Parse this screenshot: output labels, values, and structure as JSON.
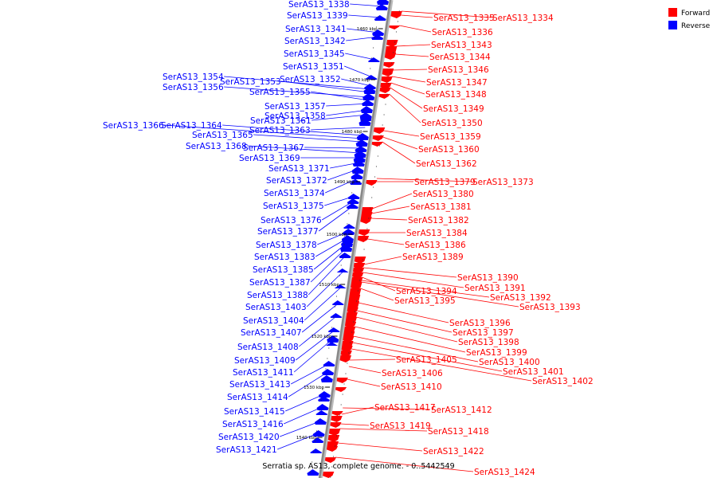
{
  "title": "Serratia sp. AS13, complete genome. - 0..5442549",
  "legend": [
    {
      "label": "Forward",
      "color": "#ff0000"
    },
    {
      "label": "Reverse",
      "color": "#0000ff"
    }
  ],
  "colors": {
    "forward": "#ff0000",
    "reverse": "#0000ff",
    "backbone": "#888888"
  },
  "ticks": [
    "1460 kbp",
    "1470 kbp",
    "1480 kbp",
    "1490 kbp",
    "1500 kbp",
    "1510 kbp",
    "1520 kbp",
    "1530 kbp",
    "1540 kbp"
  ],
  "reverse_labels": [
    "SerAS13_1338",
    "SerAS13_1339",
    "SerAS13_1341",
    "SerAS13_1342",
    "SerAS13_1345",
    "SerAS13_1351",
    "SerAS13_1354",
    "SerAS13_1353",
    "SerAS13_1352",
    "SerAS13_1356",
    "SerAS13_1355",
    "SerAS13_1357",
    "SerAS13_1358",
    "SerAS13_1361",
    "SerAS13_1366",
    "SerAS13_1364",
    "SerAS13_1363",
    "SerAS13_1365",
    "SerAS13_1368",
    "SerAS13_1367",
    "SerAS13_1369",
    "SerAS13_1371",
    "SerAS13_1372",
    "SerAS13_1374",
    "SerAS13_1375",
    "SerAS13_1376",
    "SerAS13_1377",
    "SerAS13_1378",
    "SerAS13_1383",
    "SerAS13_1385",
    "SerAS13_1387",
    "SerAS13_1388",
    "SerAS13_1403",
    "SerAS13_1404",
    "SerAS13_1407",
    "SerAS13_1408",
    "SerAS13_1409",
    "SerAS13_1411",
    "SerAS13_1413",
    "SerAS13_1414",
    "SerAS13_1415",
    "SerAS13_1416",
    "SerAS13_1420",
    "SerAS13_1421"
  ],
  "forward_labels": [
    "SerAS13_1335",
    "SerAS13_1334",
    "SerAS13_1336",
    "SerAS13_1343",
    "SerAS13_1344",
    "SerAS13_1346",
    "SerAS13_1347",
    "SerAS13_1348",
    "SerAS13_1349",
    "SerAS13_1350",
    "SerAS13_1359",
    "SerAS13_1360",
    "SerAS13_1362",
    "SerAS13_1379",
    "SerAS13_1373",
    "SerAS13_1380",
    "SerAS13_1381",
    "SerAS13_1382",
    "SerAS13_1384",
    "SerAS13_1386",
    "SerAS13_1389",
    "SerAS13_1390",
    "SerAS13_1391",
    "SerAS13_1394",
    "SerAS13_1392",
    "SerAS13_1395",
    "SerAS13_1393",
    "SerAS13_1396",
    "SerAS13_1397",
    "SerAS13_1398",
    "SerAS13_1399",
    "SerAS13_1405",
    "SerAS13_1400",
    "SerAS13_1401",
    "SerAS13_1406",
    "SerAS13_1402",
    "SerAS13_1410",
    "SerAS13_1417",
    "SerAS13_1412",
    "SerAS13_1419",
    "SerAS13_1418",
    "SerAS13_1422",
    "SerAS13_1424"
  ]
}
